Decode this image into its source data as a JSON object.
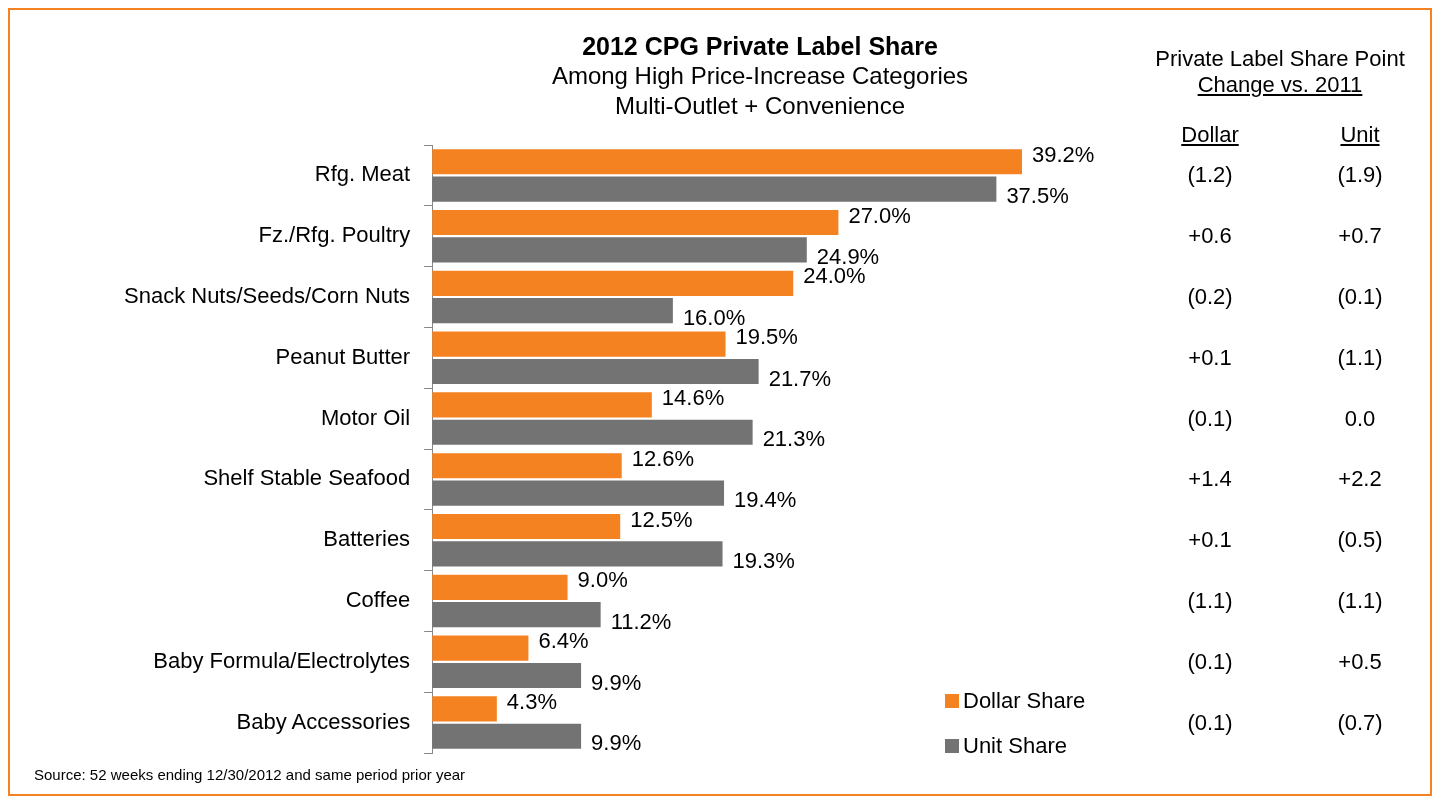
{
  "chart_data": {
    "type": "bar",
    "orientation": "horizontal",
    "title": "2012 CPG Private Label Share",
    "subtitle": "Among High Price-Increase Categories Multi-Outlet + Convenience",
    "categories": [
      "Rfg. Meat",
      "Fz./Rfg. Poultry",
      "Snack Nuts/Seeds/Corn Nuts",
      "Peanut Butter",
      "Motor Oil",
      "Shelf Stable Seafood",
      "Batteries",
      "Coffee",
      "Baby Formula/Electrolytes",
      "Baby Accessories"
    ],
    "series": [
      {
        "name": "Dollar Share",
        "color": "#f58220",
        "values": [
          39.2,
          27.0,
          24.0,
          19.5,
          14.6,
          12.6,
          12.5,
          9.0,
          6.4,
          4.3
        ],
        "value_labels": [
          "39.2%",
          "27.0%",
          "24.0%",
          "19.5%",
          "14.6%",
          "12.6%",
          "12.5%",
          "9.0%",
          "6.4%",
          "4.3%"
        ]
      },
      {
        "name": "Unit Share",
        "color": "#737373",
        "values": [
          37.5,
          24.9,
          16.0,
          21.7,
          21.3,
          19.4,
          19.3,
          11.2,
          9.9,
          9.9
        ],
        "value_labels": [
          "37.5%",
          "24.9%",
          "16.0%",
          "21.7%",
          "21.3%",
          "19.4%",
          "19.3%",
          "11.2%",
          "9.9%",
          "9.9%"
        ]
      }
    ],
    "legend": "bottom right",
    "annotations": [
      "Source: 52 weeks ending 12/30/2012 and same period prior year",
      "Private Label Share Point",
      "Change vs. 2011",
      "Dollar",
      "Unit",
      "(1.2)",
      "(1.9)",
      "+0.6",
      "+0.7",
      "(0.2)",
      "(0.1)",
      "+0.1",
      "(1.1)",
      "(0.1)",
      "0.0",
      "+1.4",
      "+2.2",
      "+0.1",
      "(0.5)",
      "(1.1)",
      "(1.1)",
      "(0.1)",
      "+0.5",
      "(0.1)",
      "(0.7)"
    ]
  }
}
